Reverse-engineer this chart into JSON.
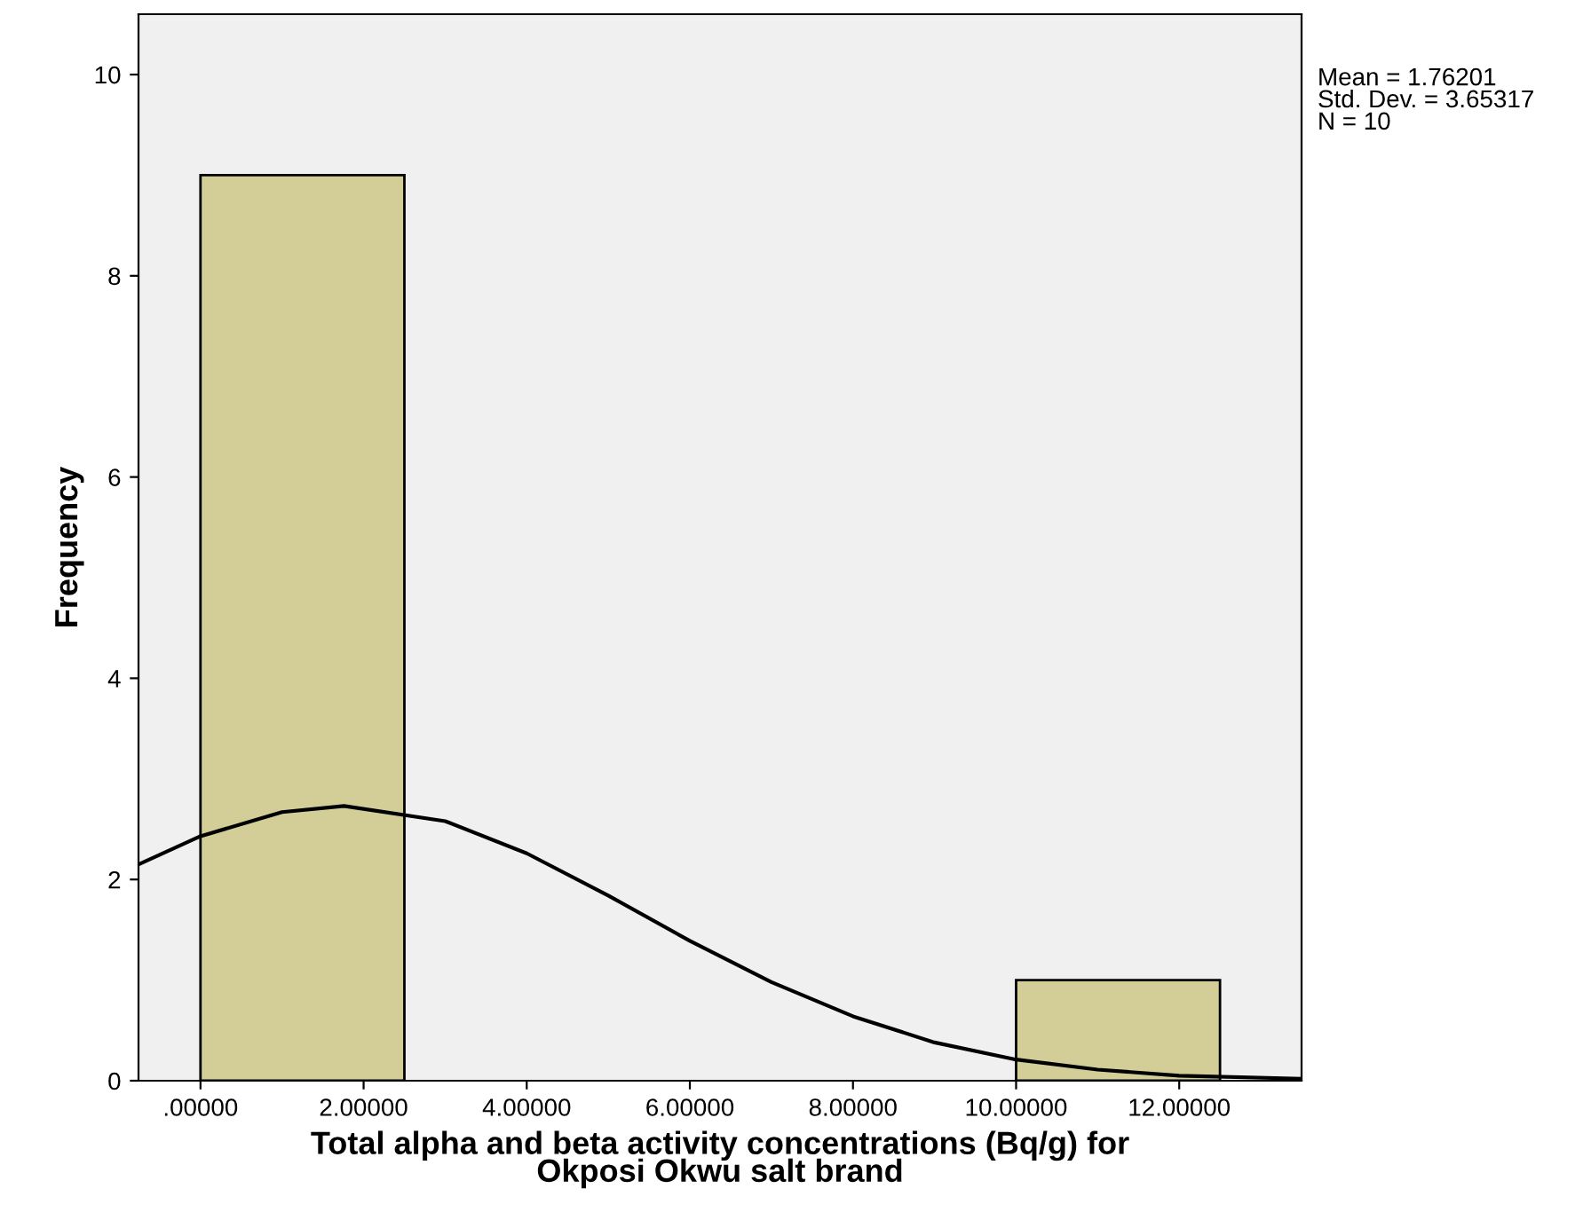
{
  "chart_data": {
    "type": "histogram",
    "xlabel": "Total alpha and beta activity concentrations (Bq/g) for\nOkposi Okwu salt brand",
    "ylabel": "Frequency",
    "bins": [
      0,
      2.5,
      5,
      7.5,
      10,
      12.5
    ],
    "values": [
      9,
      0,
      0,
      0,
      1
    ],
    "color": "#d3ce97",
    "series": [
      {
        "type": "line",
        "color": "#000000",
        "x": [
          -0.76,
          0,
          1,
          1.76,
          3,
          4,
          5,
          6,
          7,
          8,
          9,
          10,
          11,
          12,
          13.5
        ],
        "values": [
          2.15,
          2.43,
          2.67,
          2.73,
          2.58,
          2.26,
          1.84,
          1.39,
          0.98,
          0.64,
          0.38,
          0.21,
          0.11,
          0.05,
          0.02
        ]
      }
    ],
    "xlim": [
      -0.76,
      13.5
    ],
    "ylim": [
      0,
      10.6
    ],
    "xticks": [
      {
        "value": 0,
        "label": ".00000"
      },
      {
        "value": 2,
        "label": "2.00000"
      },
      {
        "value": 4,
        "label": "4.00000"
      },
      {
        "value": 6,
        "label": "6.00000"
      },
      {
        "value": 8,
        "label": "8.00000"
      },
      {
        "value": 10,
        "label": "10.00000"
      },
      {
        "value": 12,
        "label": "12.00000"
      }
    ],
    "yticks": [
      0,
      2,
      4,
      6,
      8,
      10
    ],
    "annotations": [
      "Mean = 1.76201\nStd. Dev. = 3.65317\nN = 10"
    ],
    "grid": false,
    "legend": false
  }
}
